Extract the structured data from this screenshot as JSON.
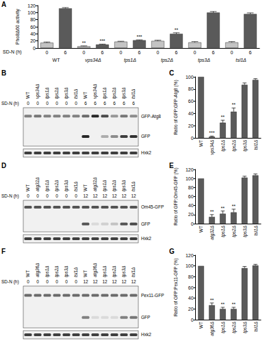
{
  "chart_data": [
    {
      "panel": "A",
      "type": "bar",
      "y_label": "Pho8Δ60 activity",
      "x_row_label": "SD-N (h)",
      "categories": [
        "WT",
        "vps34Δ",
        "tps1Δ",
        "tps2Δ",
        "tps3Δ",
        "tsl1Δ"
      ],
      "series": [
        {
          "name": "0",
          "color": "#c4c4c4",
          "values": [
            15,
            5,
            18,
            20,
            16,
            16
          ],
          "errors": [
            2,
            1,
            1,
            2,
            2,
            2
          ],
          "significance": [
            null,
            "**",
            null,
            null,
            null,
            null
          ]
        },
        {
          "name": "6",
          "color": "#5a5a5a",
          "values": [
            112,
            10,
            22,
            40,
            100,
            96
          ],
          "errors": [
            2,
            1,
            1,
            3,
            3,
            3
          ],
          "significance": [
            null,
            "***",
            "***",
            "**",
            null,
            null
          ]
        }
      ],
      "ylim": [
        0,
        120
      ],
      "yticks": [
        0,
        20,
        40,
        60,
        80,
        100,
        120
      ]
    },
    {
      "panel": "C",
      "type": "bar",
      "y_label": "Ratio of GFP:GFP-Atg8 (%)",
      "categories": [
        "WT",
        "vps34Δ",
        "tps1Δ",
        "tps2Δ",
        "tps3Δ",
        "tsl1Δ"
      ],
      "values": [
        100,
        2,
        25,
        43,
        87,
        95
      ],
      "errors": [
        0,
        1,
        4,
        6,
        3,
        2
      ],
      "significance": [
        null,
        "***",
        "**",
        "**",
        null,
        null
      ],
      "color": "#5a5a5a",
      "ylim": [
        0,
        100
      ],
      "yticks": [
        0,
        20,
        40,
        60,
        80,
        100
      ]
    },
    {
      "panel": "E",
      "type": "bar",
      "y_label": "Ratio of GFP:Om45-GFP (%)",
      "categories": [
        "WT",
        "atg32Δ",
        "tps1Δ",
        "tps2Δ",
        "tps3Δ",
        "tsl1Δ"
      ],
      "values": [
        100,
        15,
        22,
        25,
        102,
        107
      ],
      "errors": [
        0,
        5,
        6,
        7,
        3,
        3
      ],
      "significance": [
        null,
        "**",
        "**",
        "**",
        null,
        null
      ],
      "color": "#5a5a5a",
      "ylim": [
        0,
        120
      ],
      "yticks": [
        0,
        20,
        40,
        60,
        80,
        100,
        120
      ]
    },
    {
      "panel": "G",
      "type": "bar",
      "y_label": "Ratio of GFP:Pex11-GFP (%)",
      "categories": [
        "WT",
        "atg36Δ",
        "tps1Δ",
        "tps2Δ",
        "tps3Δ",
        "tsl1Δ"
      ],
      "values": [
        100,
        27,
        20,
        20,
        96,
        101
      ],
      "errors": [
        0,
        4,
        3,
        3,
        3,
        2
      ],
      "significance": [
        null,
        "**",
        "**",
        "**",
        null,
        null
      ],
      "color": "#5a5a5a",
      "ylim": [
        0,
        120
      ],
      "yticks": [
        0,
        20,
        40,
        60,
        80,
        100,
        120
      ]
    }
  ],
  "blots": [
    {
      "panel": "B",
      "row_label": "SD-N (h)",
      "lanes": [
        "WT",
        "vps34Δ",
        "tps1Δ",
        "tps2Δ",
        "tps3Δ",
        "tsl1Δ",
        "WT",
        "vps34Δ",
        "tps1Δ",
        "tps2Δ",
        "tps3Δ",
        "tsl1Δ"
      ],
      "times": [
        0,
        0,
        0,
        0,
        0,
        0,
        6,
        6,
        6,
        6,
        6,
        6
      ],
      "bands": [
        {
          "label": "GFP-Atg8",
          "intensity": [
            0.5,
            0.55,
            0.5,
            0.5,
            0.5,
            0.5,
            0.6,
            0.9,
            0.75,
            0.4,
            0.55,
            0.45
          ]
        },
        {
          "label": "GFP",
          "intensity": [
            0,
            0,
            0,
            0,
            0,
            0,
            0.9,
            0,
            0.3,
            0.45,
            0.8,
            0.85
          ]
        },
        {
          "label": "Hxk2",
          "intensity": [
            0.8,
            0.8,
            0.8,
            0.8,
            0.8,
            0.8,
            0.8,
            0.8,
            0.8,
            0.8,
            0.8,
            0.8
          ]
        }
      ]
    },
    {
      "panel": "D",
      "row_label": "SD-N (h)",
      "lanes": [
        "WT",
        "atg32Δ",
        "tps1Δ",
        "tps2Δ",
        "tps3Δ",
        "tsl1Δ",
        "WT",
        "atg32Δ",
        "tps1Δ",
        "tps2Δ",
        "tps3Δ",
        "tsl1Δ"
      ],
      "times": [
        0,
        0,
        0,
        0,
        0,
        0,
        12,
        12,
        12,
        12,
        12,
        12
      ],
      "bands": [
        {
          "label": "Om45-GFP",
          "intensity": [
            0.7,
            0.7,
            0.7,
            0.7,
            0.7,
            0.7,
            0.7,
            0.7,
            0.7,
            0.7,
            0.7,
            0.7
          ]
        },
        {
          "label": "GFP",
          "intensity": [
            0,
            0,
            0,
            0,
            0,
            0,
            0.7,
            0.1,
            0.15,
            0.2,
            0.7,
            0.75
          ]
        },
        {
          "label": "Hxk2",
          "intensity": [
            0.8,
            0.8,
            0.8,
            0.8,
            0.8,
            0.8,
            0.8,
            0.8,
            0.8,
            0.8,
            0.8,
            0.8
          ]
        }
      ]
    },
    {
      "panel": "F",
      "row_label": "SD-N (h)",
      "lanes": [
        "WT",
        "atg36Δ",
        "tps1Δ",
        "tps2Δ",
        "tps3Δ",
        "tsl1Δ",
        "WT",
        "atg36Δ",
        "tps1Δ",
        "tps2Δ",
        "tps3Δ",
        "tsl1Δ"
      ],
      "times": [
        0,
        0,
        0,
        0,
        0,
        0,
        12,
        12,
        12,
        12,
        12,
        12
      ],
      "bands": [
        {
          "label": "Pex11-GFP",
          "intensity": [
            0.6,
            0.6,
            0.6,
            0.6,
            0.6,
            0.6,
            0.6,
            0.6,
            0.6,
            0.6,
            0.6,
            0.6
          ]
        },
        {
          "label": "GFP",
          "intensity": [
            0,
            0,
            0,
            0,
            0,
            0,
            0.5,
            0.1,
            0.1,
            0.1,
            0.5,
            0.55
          ]
        },
        {
          "label": "Hxk2",
          "intensity": [
            0.8,
            0.8,
            0.8,
            0.8,
            0.8,
            0.8,
            0.8,
            0.8,
            0.8,
            0.8,
            0.8,
            0.8
          ]
        }
      ]
    }
  ]
}
